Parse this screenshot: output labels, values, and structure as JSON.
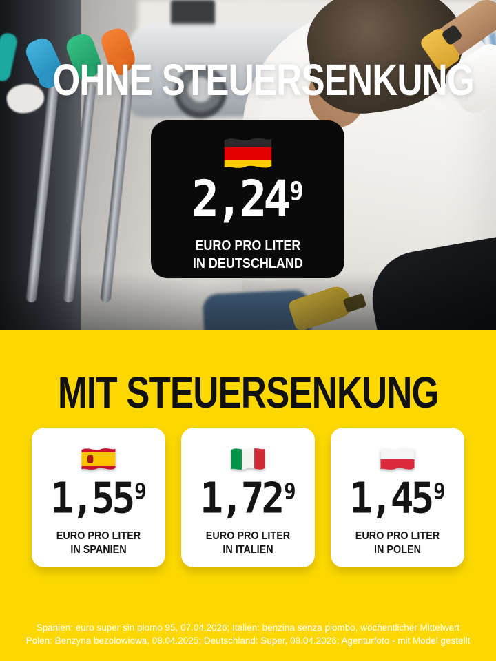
{
  "poster": {
    "top": {
      "headline": "OHNE STEUERSENKUNG",
      "card": {
        "flag": "germany",
        "price": "2,24",
        "price_sup": "9",
        "unit_line1": "EURO PRO LITER",
        "unit_line2": "IN DEUTSCHLAND"
      }
    },
    "bottom": {
      "headline": "MIT STEUERSENKUNG",
      "cards": [
        {
          "flag": "spain",
          "price": "1,55",
          "price_sup": "9",
          "unit_line1": "EURO PRO LITER",
          "unit_line2": "IN SPANIEN"
        },
        {
          "flag": "italy",
          "price": "1,72",
          "price_sup": "9",
          "unit_line1": "EURO PRO LITER",
          "unit_line2": "IN ITALIEN"
        },
        {
          "flag": "poland",
          "price": "1,45",
          "price_sup": "9",
          "unit_line1": "EURO PRO LITER",
          "unit_line2": "IN POLEN"
        }
      ],
      "footnotes": [
        "Spanien: euro super sin plomo 95, 07.04.2026; Italien: benzina senza piombo, wöchentlicher Mittelwert",
        "Polen: Benzyna bezolowiowa, 08.04.2025; Deutschland: Super, 08.04.2026; Agenturfoto - mit Model gestellt"
      ]
    },
    "colors": {
      "brand_yellow": "#FCD800",
      "card_black": "#0A0A0A",
      "card_white": "#FFFFFF",
      "headline_white": "#FFFFFF",
      "text_black": "#141414"
    }
  }
}
